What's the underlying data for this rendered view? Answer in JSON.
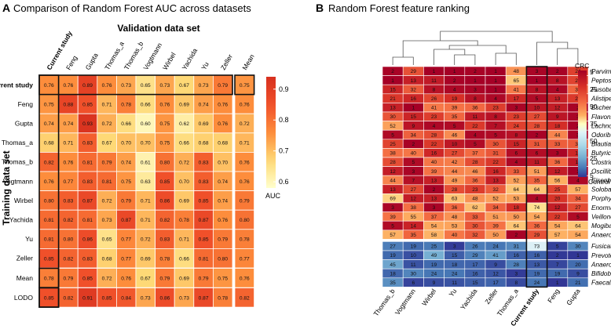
{
  "chart_data": [
    {
      "type": "heatmap",
      "panel_letter": "A",
      "title": "Comparison of Random Forest AUC across datasets",
      "xlabel": "Validation data set",
      "ylabel": "Training data set",
      "columns": [
        "Current study",
        "Feng",
        "Gupta",
        "Thomas_a",
        "Thomas_b",
        "Vogtmann",
        "Wirbel",
        "Yachida",
        "Yu",
        "Zeller",
        "Mean"
      ],
      "rows": [
        "Current study",
        "Feng",
        "Gupta",
        "Thomas_a",
        "Thomas_b",
        "Vogtmann",
        "Wirbel",
        "Yachida",
        "Yu",
        "Zeller",
        "Mean",
        "LODO"
      ],
      "values": [
        [
          0.76,
          0.76,
          0.89,
          0.76,
          0.73,
          0.65,
          0.73,
          0.67,
          0.73,
          0.79,
          0.75
        ],
        [
          0.75,
          0.88,
          0.85,
          0.71,
          0.78,
          0.66,
          0.76,
          0.69,
          0.74,
          0.76,
          0.76
        ],
        [
          0.74,
          0.74,
          0.93,
          0.72,
          0.66,
          0.6,
          0.75,
          0.62,
          0.69,
          0.76,
          0.72
        ],
        [
          0.68,
          0.71,
          0.83,
          0.67,
          0.7,
          0.7,
          0.75,
          0.66,
          0.68,
          0.68,
          0.71
        ],
        [
          0.82,
          0.76,
          0.81,
          0.79,
          0.74,
          0.61,
          0.8,
          0.72,
          0.83,
          0.7,
          0.76
        ],
        [
          0.76,
          0.77,
          0.83,
          0.81,
          0.75,
          0.63,
          0.85,
          0.7,
          0.83,
          0.74,
          0.76
        ],
        [
          0.8,
          0.83,
          0.87,
          0.72,
          0.79,
          0.71,
          0.86,
          0.69,
          0.85,
          0.74,
          0.79
        ],
        [
          0.81,
          0.82,
          0.81,
          0.73,
          0.87,
          0.71,
          0.82,
          0.78,
          0.87,
          0.76,
          0.8
        ],
        [
          0.81,
          0.8,
          0.86,
          0.65,
          0.77,
          0.72,
          0.83,
          0.71,
          0.85,
          0.79,
          0.78
        ],
        [
          0.85,
          0.82,
          0.83,
          0.68,
          0.77,
          0.69,
          0.78,
          0.66,
          0.81,
          0.8,
          0.77
        ],
        [
          0.78,
          0.79,
          0.85,
          0.72,
          0.76,
          0.67,
          0.79,
          0.69,
          0.79,
          0.75,
          0.76
        ],
        [
          0.85,
          0.82,
          0.91,
          0.85,
          0.84,
          0.73,
          0.86,
          0.73,
          0.87,
          0.78,
          0.82
        ]
      ],
      "colorbar": {
        "label": "AUC",
        "ticks": [
          "0.9",
          "0.8",
          "0.7",
          "0.6"
        ],
        "tick_values": [
          0.9,
          0.8,
          0.7,
          0.6
        ],
        "range": [
          0.58,
          0.94
        ]
      },
      "colors": {
        "low": "#ffffcc",
        "high": "#d7301f"
      }
    },
    {
      "type": "heatmap",
      "panel_letter": "B",
      "title": "Random Forest feature ranking",
      "columns": [
        "Thomas_b",
        "Vogtmann",
        "Wirbel",
        "Yu",
        "Yachida",
        "Zeller",
        "Thomas_a",
        "Current study",
        "Feng",
        "Gupta"
      ],
      "rows": [
        "Parvimonas",
        "Peptostreptococcus",
        "Fusobacterium",
        "Alistipes",
        "Escherichia",
        "Flavonifractor",
        "Lachnoclostridium",
        "Odoribacter",
        "Blautia",
        "Butyricimonas",
        "Clostridium",
        "Oscillibacter",
        "Eisenbergiella",
        "Solobacterium",
        "Porphyromonas",
        "Enorma",
        "Veillonella",
        "Mogibacterium",
        "Anaerotruncus",
        "Fusicatenibacter",
        "Prevotella",
        "Anaerostipes",
        "Bifidobacterium",
        "Faecalibacterium"
      ],
      "ranks": [
        [
          2,
          29,
          1,
          1,
          2,
          1,
          48,
          3,
          2,
          24
        ],
        [
          1,
          13,
          11,
          2,
          1,
          1,
          65,
          1,
          8,
          25
        ],
        [
          15,
          32,
          8,
          4,
          3,
          1,
          41,
          8,
          4,
          35
        ],
        [
          21,
          16,
          26,
          19,
          8,
          4,
          17,
          5,
          13,
          22
        ],
        [
          13,
          1,
          41,
          39,
          36,
          23,
          3,
          10,
          12,
          2
        ],
        [
          30,
          15,
          23,
          35,
          11,
          8,
          23,
          27,
          9,
          3
        ],
        [
          52,
          9,
          4,
          5,
          22,
          7,
          24,
          28,
          18,
          2
        ],
        [
          5,
          34,
          28,
          46,
          4,
          5,
          8,
          2,
          44,
          3
        ],
        [
          25,
          2,
          22,
          10,
          5,
          30,
          15,
          31,
          33,
          32
        ],
        [
          38,
          40,
          16,
          27,
          37,
          31,
          6,
          6,
          3,
          16
        ],
        [
          28,
          5,
          40,
          42,
          28,
          22,
          4,
          11,
          36,
          11
        ],
        [
          12,
          3,
          39,
          44,
          46,
          16,
          33,
          51,
          12,
          1
        ],
        [
          44,
          7,
          13,
          49,
          36,
          13,
          52,
          35,
          56,
          4
        ],
        [
          13,
          27,
          2,
          28,
          23,
          32,
          64,
          64,
          25,
          57
        ],
        [
          69,
          12,
          13,
          63,
          48,
          52,
          53,
          4,
          20,
          34
        ],
        [
          3,
          38,
          3,
          36,
          62,
          34,
          18,
          74,
          12,
          27
        ],
        [
          39,
          55,
          37,
          48,
          33,
          51,
          50,
          54,
          22,
          5
        ],
        [
          5,
          14,
          54,
          53,
          30,
          39,
          64,
          36,
          54,
          64
        ],
        [
          57,
          35,
          58,
          40,
          32,
          50,
          2,
          29,
          57,
          54
        ],
        [
          27,
          19,
          25,
          3,
          26,
          24,
          31,
          73,
          5,
          30
        ],
        [
          19,
          10,
          49,
          15,
          29,
          41,
          16,
          16,
          2,
          1
        ],
        [
          45,
          11,
          19,
          18,
          17,
          9,
          28,
          13,
          7,
          20
        ],
        [
          18,
          30,
          24,
          24,
          16,
          12,
          3,
          19,
          19,
          9
        ],
        [
          35,
          6,
          9,
          11,
          15,
          17,
          8,
          24,
          1,
          21
        ]
      ],
      "group_labels": {
        "crc": "CRC",
        "control": "Control"
      },
      "colorbar": {
        "ticks": [
          "5",
          "25",
          "50",
          "75",
          "50",
          "25",
          "5"
        ]
      },
      "colors": {
        "crc_dark": "#a50026",
        "crc_light": "#fee090",
        "ctrl_dark": "#313695",
        "ctrl_light": "#e0f3f8"
      }
    }
  ]
}
